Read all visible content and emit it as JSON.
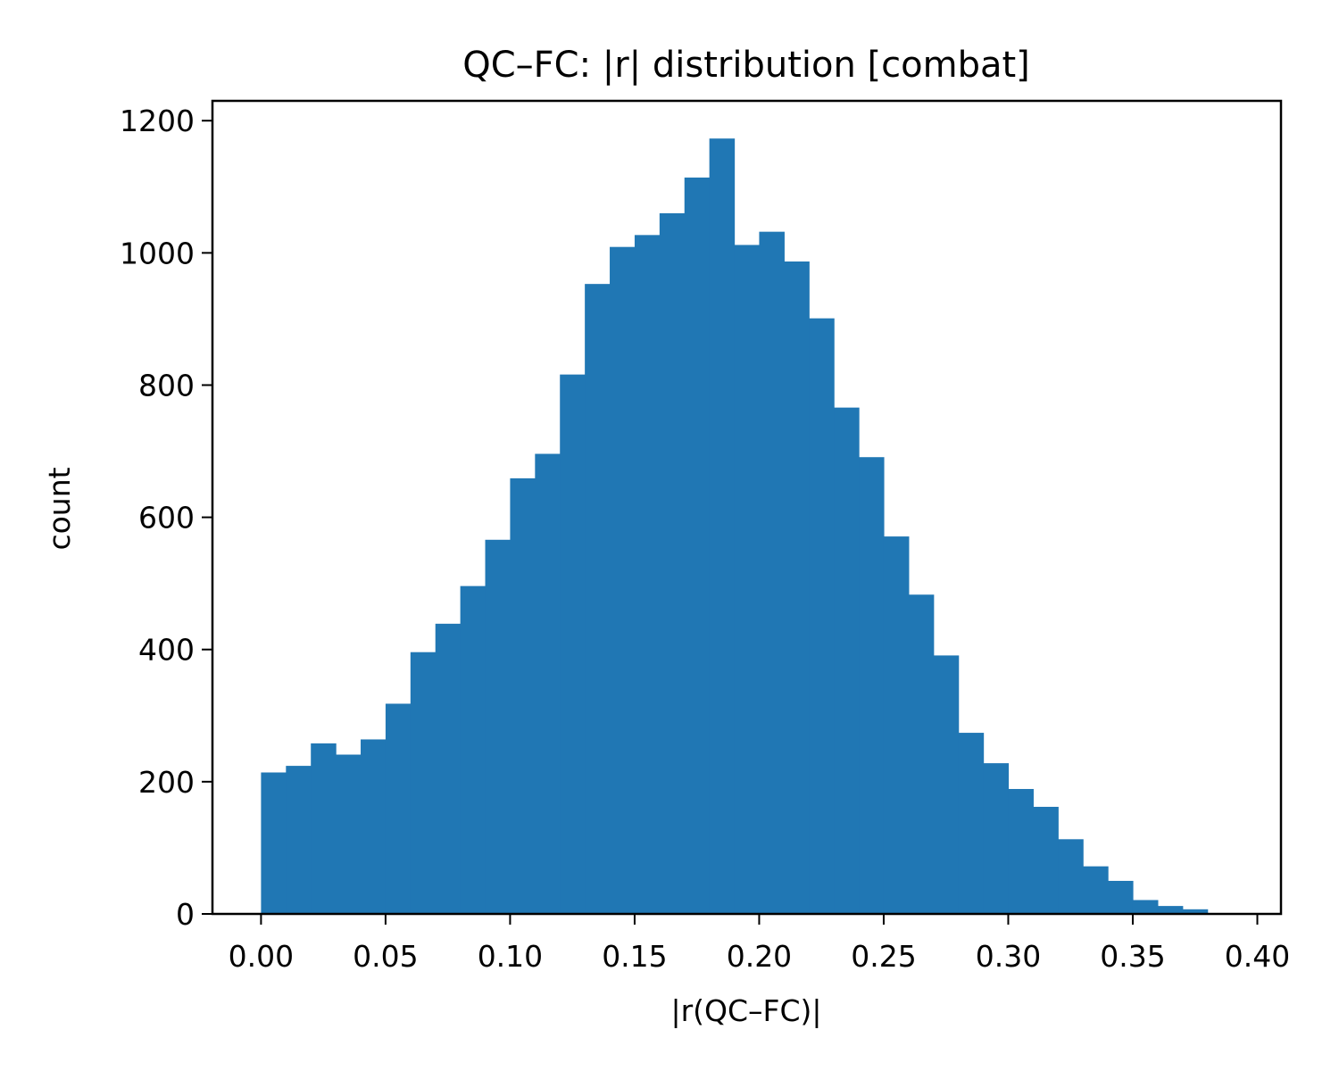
{
  "chart_data": {
    "type": "bar",
    "title": "QC–FC: |r| distribution [combat]",
    "xlabel": "|r(QC–FC)|",
    "ylabel": "count",
    "xlim": [
      -0.0195,
      0.4095
    ],
    "ylim": [
      0,
      1230
    ],
    "xticks": [
      0.0,
      0.05,
      0.1,
      0.15,
      0.2,
      0.25,
      0.3,
      0.35,
      0.4
    ],
    "xtick_labels": [
      "0.00",
      "0.05",
      "0.10",
      "0.15",
      "0.20",
      "0.25",
      "0.30",
      "0.35",
      "0.40"
    ],
    "yticks": [
      0,
      200,
      400,
      600,
      800,
      1000,
      1200
    ],
    "ytick_labels": [
      "0",
      "200",
      "400",
      "600",
      "800",
      "1000",
      "1200"
    ],
    "bin_edges": [
      0.0,
      0.01,
      0.02,
      0.03,
      0.04,
      0.05,
      0.06,
      0.07,
      0.08,
      0.09,
      0.1,
      0.11,
      0.12,
      0.13,
      0.14,
      0.15,
      0.16,
      0.17,
      0.18,
      0.19,
      0.2,
      0.21,
      0.22,
      0.23,
      0.24,
      0.25,
      0.26,
      0.27,
      0.28,
      0.29,
      0.3,
      0.31,
      0.32,
      0.33,
      0.34,
      0.35,
      0.36,
      0.37,
      0.38
    ],
    "values": [
      214,
      224,
      258,
      241,
      264,
      318,
      396,
      439,
      496,
      566,
      659,
      696,
      816,
      953,
      1009,
      1027,
      1060,
      1114,
      1173,
      1012,
      1032,
      987,
      901,
      766,
      691,
      571,
      483,
      391,
      274,
      228,
      189,
      162,
      113,
      72,
      50,
      21,
      12,
      7
    ],
    "bar_color": "#2077b4",
    "grid": false,
    "legend": "none"
  }
}
